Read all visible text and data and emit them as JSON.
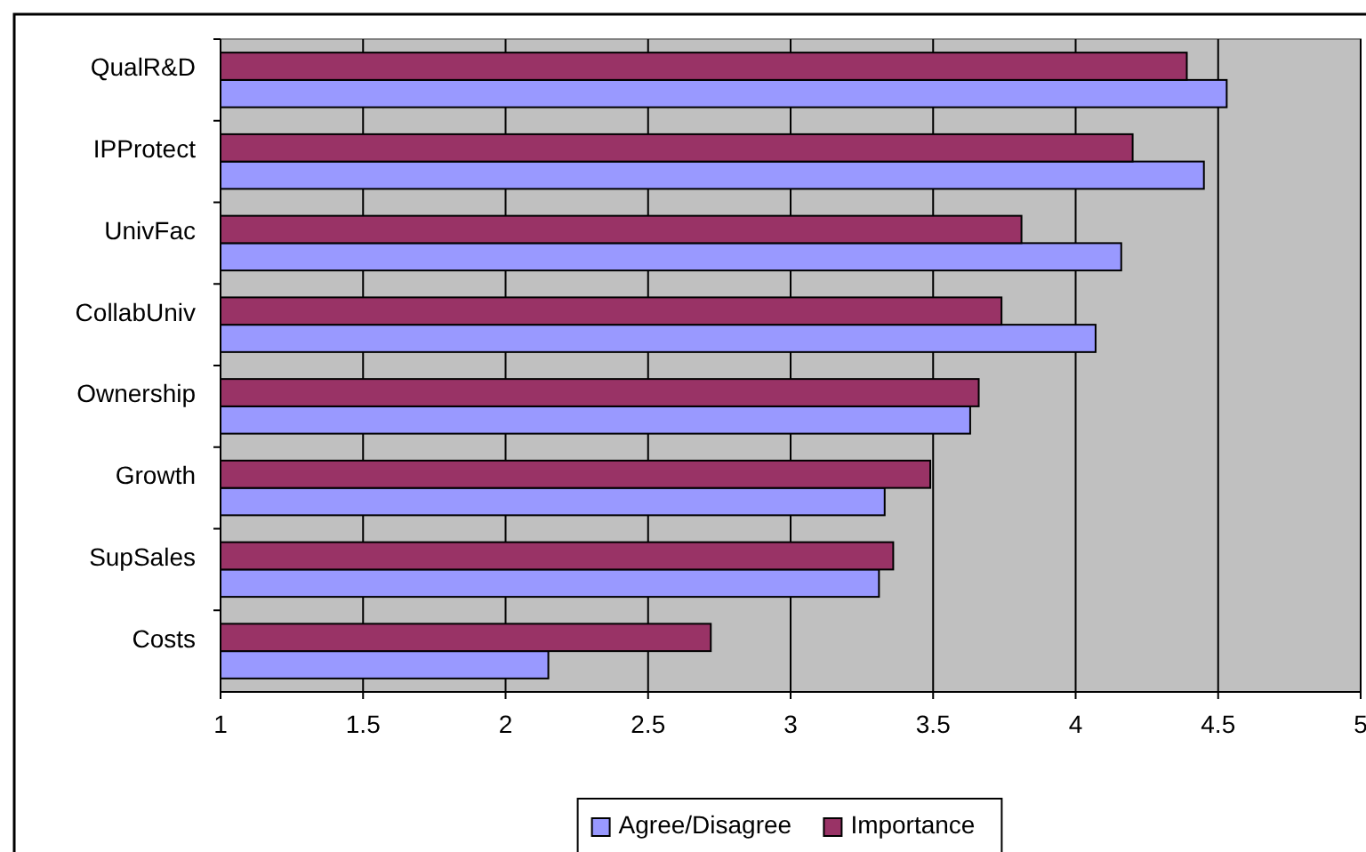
{
  "chart_data": {
    "type": "bar",
    "orientation": "horizontal",
    "categories": [
      "QualR&D",
      "IPProtect",
      "UnivFac",
      "CollabUniv",
      "Ownership",
      "Growth",
      "SupSales",
      "Costs"
    ],
    "series": [
      {
        "name": "Agree/Disagree",
        "color": "#9999ff",
        "values": [
          4.53,
          4.45,
          4.16,
          4.07,
          3.63,
          3.33,
          3.31,
          2.15
        ]
      },
      {
        "name": "Importance",
        "color": "#993366",
        "values": [
          4.39,
          4.2,
          3.81,
          3.74,
          3.66,
          3.49,
          3.36,
          2.72
        ]
      }
    ],
    "xlim": [
      1,
      5
    ],
    "xticks": [
      1,
      1.5,
      2,
      2.5,
      3,
      3.5,
      4,
      4.5,
      5
    ],
    "grid": "x",
    "legend": "bottom"
  }
}
